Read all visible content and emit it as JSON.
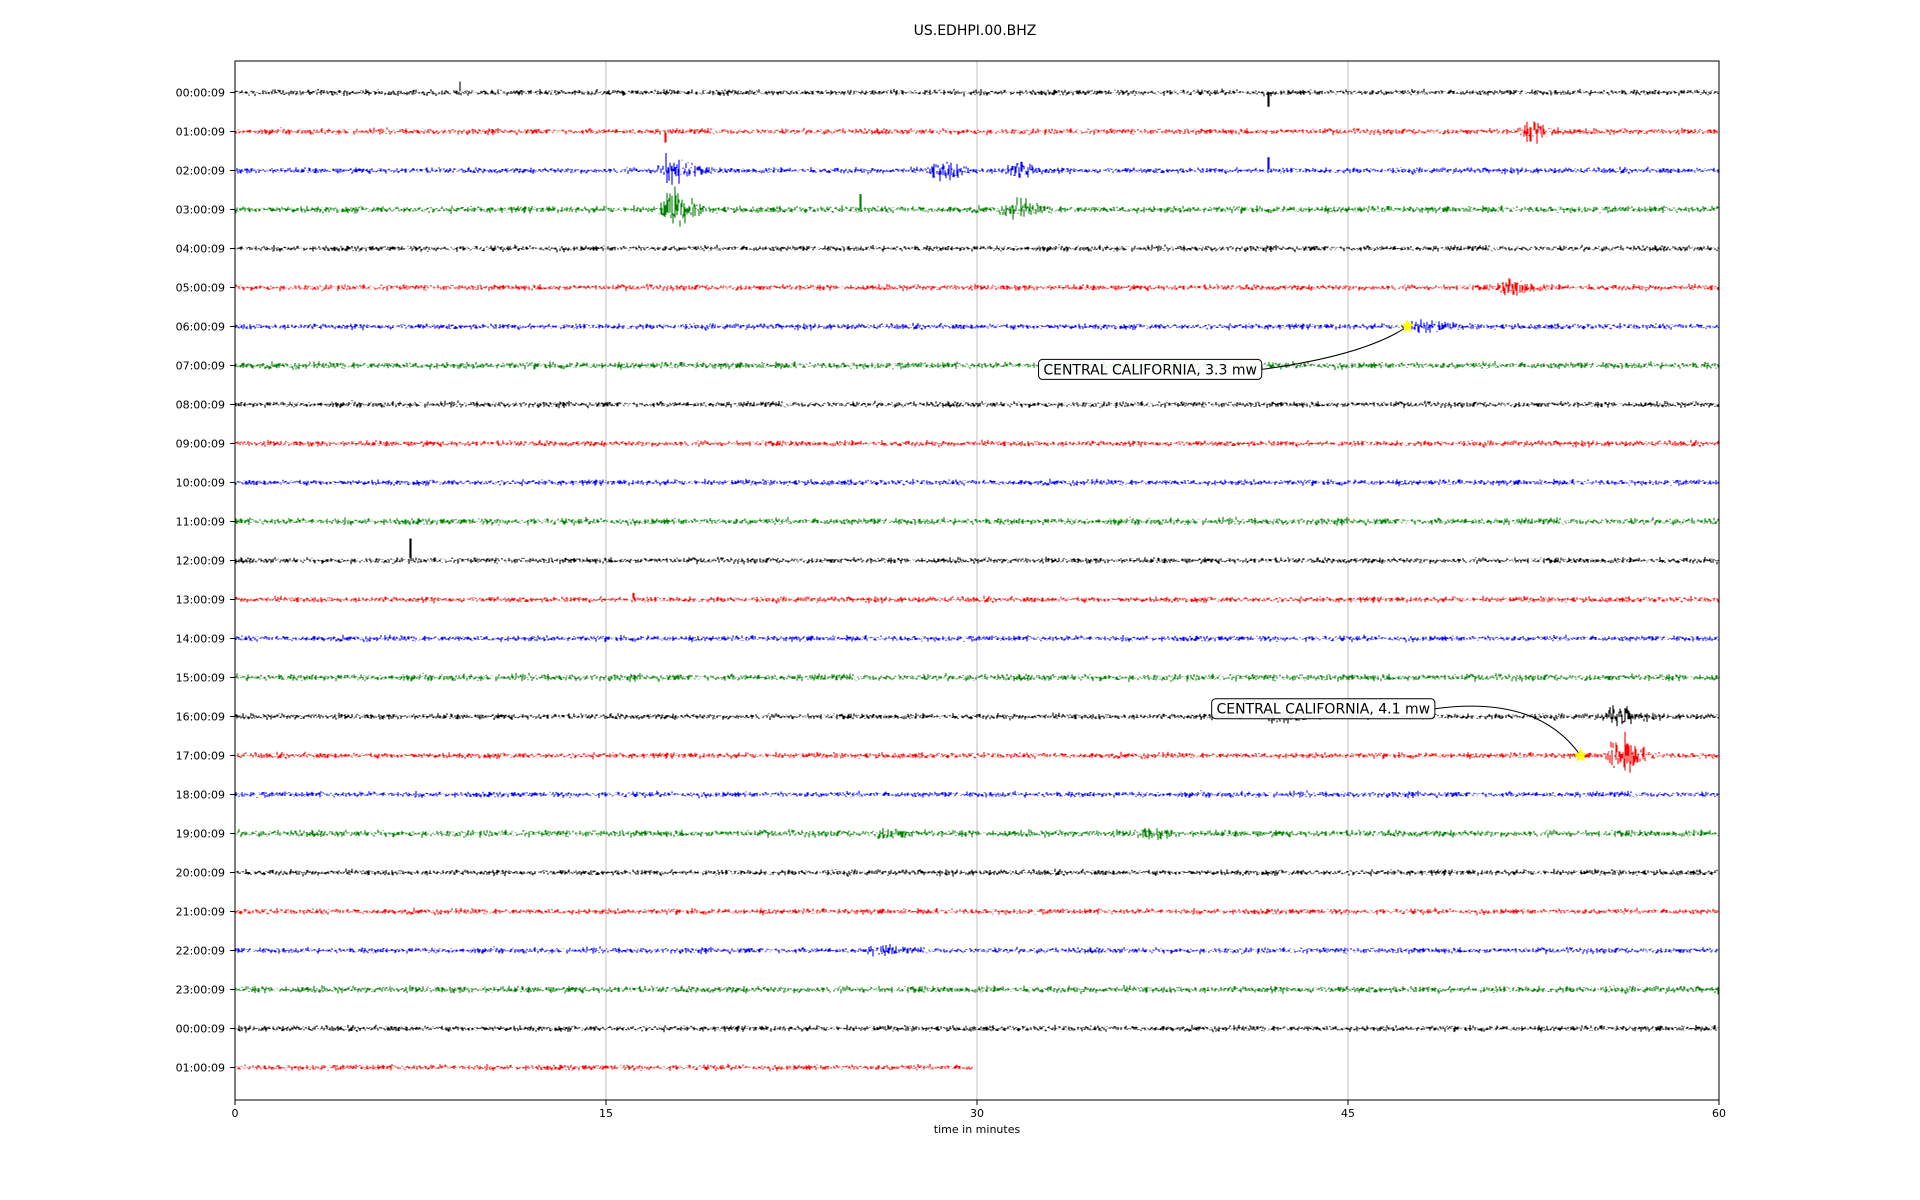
{
  "chart_data": {
    "type": "line",
    "title": "US.EDHPI.00.BHZ",
    "xlabel": "time in minutes",
    "ylabel": "",
    "xlim": [
      0,
      60
    ],
    "xticks": [
      0,
      15,
      30,
      45,
      60
    ],
    "grid": true,
    "row_labels": [
      "00:00:09",
      "01:00:09",
      "02:00:09",
      "03:00:09",
      "04:00:09",
      "05:00:09",
      "06:00:09",
      "07:00:09",
      "08:00:09",
      "09:00:09",
      "10:00:09",
      "11:00:09",
      "12:00:09",
      "13:00:09",
      "14:00:09",
      "15:00:09",
      "16:00:09",
      "17:00:09",
      "18:00:09",
      "19:00:09",
      "20:00:09",
      "21:00:09",
      "22:00:09",
      "23:00:09",
      "00:00:09",
      "01:00:09"
    ],
    "row_colors": [
      "#000000",
      "#ff0000",
      "#0000ff",
      "#008000"
    ],
    "last_row_end_minute": 29.8,
    "events": [
      {
        "row": 1,
        "minute": 52.4,
        "amp": 0.6
      },
      {
        "row": 2,
        "minute": 17.5,
        "amp": 1.0
      },
      {
        "row": 2,
        "minute": 28.5,
        "amp": 0.6
      },
      {
        "row": 2,
        "minute": 31.5,
        "amp": 0.5
      },
      {
        "row": 3,
        "minute": 17.6,
        "amp": 1.1
      },
      {
        "row": 3,
        "minute": 31.5,
        "amp": 0.5
      },
      {
        "row": 5,
        "minute": 51.5,
        "amp": 0.55
      },
      {
        "row": 6,
        "minute": 48.0,
        "amp": 0.4
      },
      {
        "row": 16,
        "minute": 42.0,
        "amp": 0.45
      },
      {
        "row": 16,
        "minute": 55.8,
        "amp": 0.6
      },
      {
        "row": 17,
        "minute": 55.9,
        "amp": 1.3
      },
      {
        "row": 19,
        "minute": 26.3,
        "amp": 0.25
      },
      {
        "row": 19,
        "minute": 36.8,
        "amp": 0.25
      },
      {
        "row": 22,
        "minute": 26.0,
        "amp": 0.25
      }
    ],
    "spikes": [
      {
        "row": 0,
        "minute": 41.8,
        "amp": 0.65
      },
      {
        "row": 0,
        "minute": 9.1,
        "amp": -0.5
      },
      {
        "row": 1,
        "minute": 17.4,
        "amp": 0.5
      },
      {
        "row": 3,
        "minute": 25.3,
        "amp": -0.7
      },
      {
        "row": 12,
        "minute": 7.1,
        "amp": -1.0
      },
      {
        "row": 13,
        "minute": 16.1,
        "amp": -0.3
      },
      {
        "row": 2,
        "minute": 41.8,
        "amp": -0.6
      }
    ],
    "annotations": [
      {
        "text": "CENTRAL CALIFORNIA, 3.3 mw",
        "row": 6,
        "minute": 47.4,
        "label_minute": 37.0,
        "label_row": 7.1
      },
      {
        "text": "CENTRAL CALIFORNIA, 4.1 mw",
        "row": 17,
        "minute": 54.4,
        "label_minute": 44.0,
        "label_row": 15.8
      }
    ],
    "marker_color": "#ffff00"
  }
}
